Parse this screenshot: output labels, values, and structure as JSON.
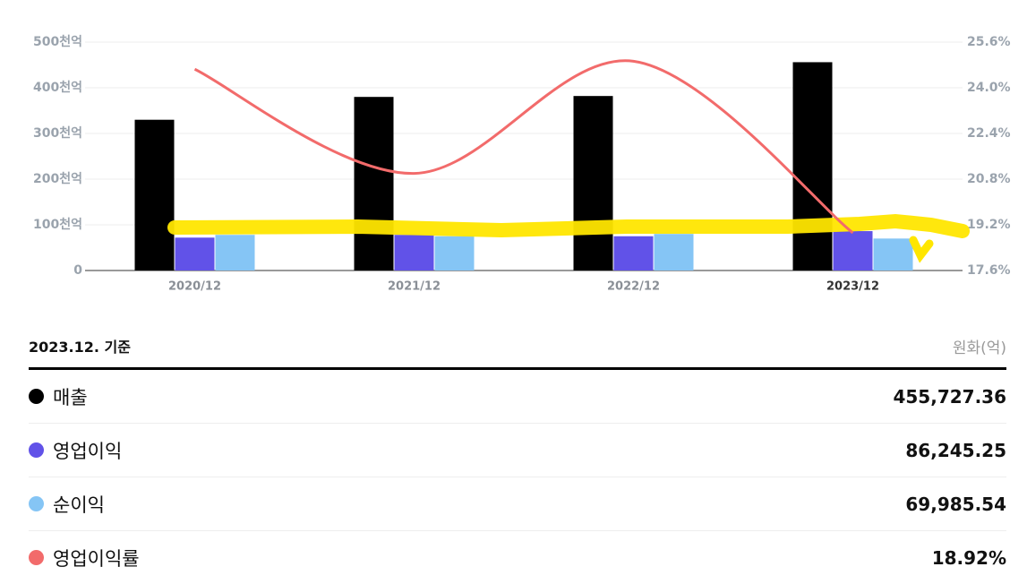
{
  "chart_data": {
    "type": "bar",
    "categories": [
      "2020/12",
      "2021/12",
      "2022/12",
      "2023/12"
    ],
    "series": [
      {
        "name": "매출",
        "color": "#000000",
        "values": [
          330,
          380,
          382,
          456
        ]
      },
      {
        "name": "영업이익",
        "color": "#6152e8",
        "values": [
          72,
          78,
          75,
          86.2
        ]
      },
      {
        "name": "순이익",
        "color": "#85c5f5",
        "values": [
          78,
          75,
          80,
          70
        ]
      },
      {
        "name": "영업이익률",
        "type": "line",
        "axis": "y2",
        "color": "#f26b6b",
        "values": [
          24.65,
          21.0,
          24.93,
          18.92
        ]
      }
    ],
    "ylim": [
      0,
      500
    ],
    "yticks": [
      0,
      {
        "value": 100,
        "label": "100천억"
      },
      {
        "value": 200,
        "label": "200천억"
      },
      {
        "value": 300,
        "label": "300천억"
      },
      {
        "value": 400,
        "label": "400천억"
      },
      {
        "value": 500,
        "label": "500천억"
      }
    ],
    "y2lim": [
      17.6,
      25.6
    ],
    "y2ticks": [
      {
        "value": 17.6,
        "label": "17.6%"
      },
      {
        "value": 19.2,
        "label": "19.2%"
      },
      {
        "value": 20.8,
        "label": "20.8%"
      },
      {
        "value": 22.4,
        "label": "22.4%"
      },
      {
        "value": 24.0,
        "label": "24.0%"
      },
      {
        "value": 25.6,
        "label": "25.6%"
      }
    ],
    "grid": true
  },
  "table": {
    "header": "2023.12. 기준",
    "unit": "원화(억)",
    "values": [
      "455,727.36",
      "86,245.25",
      "69,985.54",
      "18.92%"
    ]
  }
}
